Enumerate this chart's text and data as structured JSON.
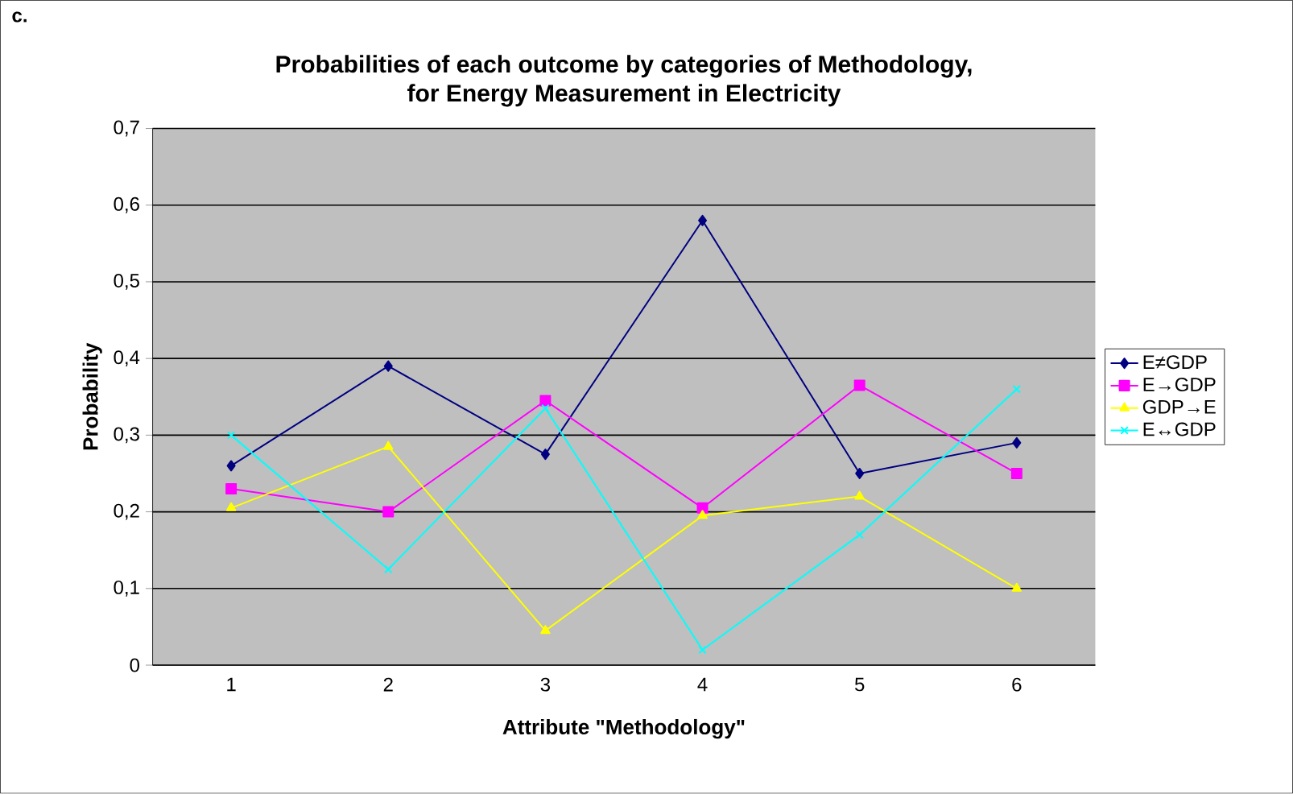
{
  "chart_data": {
    "type": "line",
    "title": "Probabilities of each outcome by categories of Methodology,\nfor Energy Measurement in Electricity",
    "xlabel": "Attribute \"Methodology\"",
    "ylabel": "Probability",
    "annotations": [
      "c."
    ],
    "categories": [
      "1",
      "2",
      "3",
      "4",
      "5",
      "6"
    ],
    "series": [
      {
        "name": "E≠GDP",
        "color": "#000080",
        "marker": "diamond",
        "values": [
          0.26,
          0.39,
          0.275,
          0.58,
          0.25,
          0.29
        ]
      },
      {
        "name": "E→GDP",
        "color": "#ff00ff",
        "marker": "square",
        "values": [
          0.23,
          0.2,
          0.345,
          0.205,
          0.365,
          0.25
        ]
      },
      {
        "name": "GDP→E",
        "color": "#ffff00",
        "marker": "triangle",
        "values": [
          0.205,
          0.285,
          0.045,
          0.195,
          0.22,
          0.1
        ]
      },
      {
        "name": "E↔GDP",
        "color": "#00ffff",
        "marker": "cross",
        "values": [
          0.3,
          0.125,
          0.335,
          0.02,
          0.17,
          0.36
        ]
      }
    ],
    "ylim": [
      0,
      0.7
    ],
    "yticks": [
      {
        "value": 0,
        "label": "0"
      },
      {
        "value": 0.1,
        "label": "0,1"
      },
      {
        "value": 0.2,
        "label": "0,2"
      },
      {
        "value": 0.3,
        "label": "0,3"
      },
      {
        "value": 0.4,
        "label": "0,4"
      },
      {
        "value": 0.5,
        "label": "0,5"
      },
      {
        "value": 0.6,
        "label": "0,6"
      },
      {
        "value": 0.7,
        "label": "0,7"
      }
    ],
    "grid": "y",
    "legend": "right"
  }
}
